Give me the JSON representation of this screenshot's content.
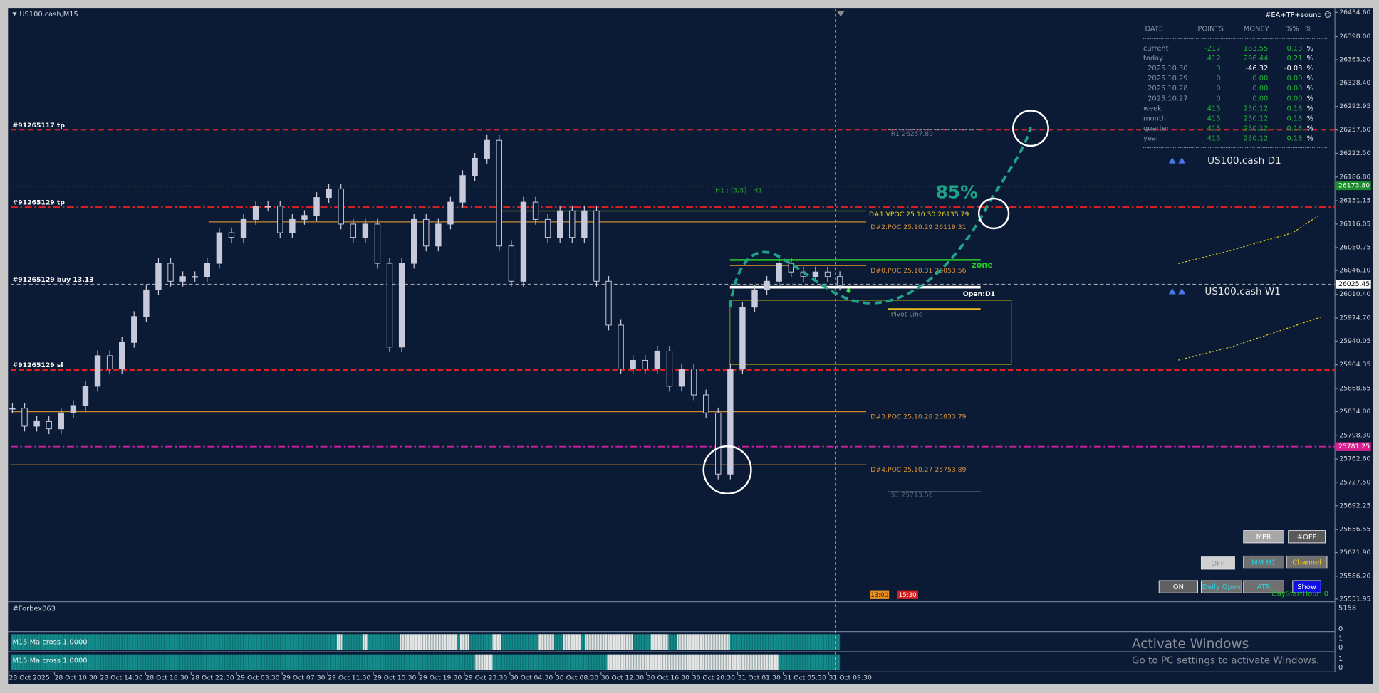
{
  "header": {
    "symbol": "US100.cash,M15",
    "ea": "#EA+TP+sound ☺"
  },
  "stats": {
    "columns": [
      "DATE",
      "POINTS",
      "MONEY",
      "%%",
      "%"
    ],
    "rows": [
      [
        "current",
        "-217",
        "183.55",
        "0.13",
        "%"
      ],
      [
        "today",
        "412",
        "296.44",
        "0.21",
        "%"
      ],
      [
        "2025.10.30",
        "3",
        "-46.32",
        "-0.03",
        "%"
      ],
      [
        "2025.10.29",
        "0",
        "0.00",
        "0.00",
        "%"
      ],
      [
        "2025.10.28",
        "0",
        "0.00",
        "0.00",
        "%"
      ],
      [
        "2025.10.27",
        "0",
        "0.00",
        "0.00",
        "%"
      ],
      [
        "week",
        "415",
        "250.12",
        "0.18",
        "%"
      ],
      [
        "month",
        "415",
        "250.12",
        "0.18",
        "%"
      ],
      [
        "quarter",
        "415",
        "250.12",
        "0.18",
        "%"
      ],
      [
        "year",
        "415",
        "250.12",
        "0.18",
        "%"
      ]
    ]
  },
  "price_axis": {
    "ylim": [
      25551.95,
      26434.6
    ],
    "ticks": [
      {
        "value": 26434.6,
        "label": "26434.60"
      },
      {
        "value": 26398,
        "label": "26398.00"
      },
      {
        "value": 26363.2,
        "label": "26363.20"
      },
      {
        "value": 26328.4,
        "label": "26328.40"
      },
      {
        "value": 26292.95,
        "label": "26292.95"
      },
      {
        "value": 26257.6,
        "label": "26257.60"
      },
      {
        "value": 26222.5,
        "label": "26222.50"
      },
      {
        "value": 26186.8,
        "label": "26186.80"
      },
      {
        "value": 26151.15,
        "label": "26151.15"
      },
      {
        "value": 26116.05,
        "label": "26116.05"
      },
      {
        "value": 26080.75,
        "label": "26080.75"
      },
      {
        "value": 26046.1,
        "label": "26046.10"
      },
      {
        "value": 26010.4,
        "label": "26010.40"
      },
      {
        "value": 25974.7,
        "label": "25974.70"
      },
      {
        "value": 25940.05,
        "label": "25940.05"
      },
      {
        "value": 25904.35,
        "label": "25904.35"
      },
      {
        "value": 25868.65,
        "label": "25868.65"
      },
      {
        "value": 25834,
        "label": "25834.00"
      },
      {
        "value": 25798.3,
        "label": "25798.30"
      },
      {
        "value": 25762.6,
        "label": "25762.60"
      },
      {
        "value": 25727.5,
        "label": "25727.50"
      },
      {
        "value": 25692.25,
        "label": "25692.25"
      },
      {
        "value": 25656.55,
        "label": "25656.55"
      },
      {
        "value": 25621.9,
        "label": "25621.90"
      },
      {
        "value": 25586.2,
        "label": "25586.20"
      },
      {
        "value": 25551.95,
        "label": "25551.95"
      }
    ],
    "markers": [
      {
        "value": 26173.8,
        "label": "26173.80",
        "color": "#1a8a2a"
      },
      {
        "value": 26025.45,
        "label": "26025.45",
        "color": "#ffffff"
      },
      {
        "value": 25781.25,
        "label": "25781.25",
        "color": "#d8208e"
      }
    ]
  },
  "time_axis": [
    "28 Oct 2025",
    "28 Oct 10:30",
    "28 Oct 14:30",
    "28 Oct 18:30",
    "28 Oct 22:30",
    "29 Oct 03:30",
    "29 Oct 07:30",
    "29 Oct 11:30",
    "29 Oct 15:30",
    "29 Oct 19:30",
    "29 Oct 23:30",
    "30 Oct 04:30",
    "30 Oct 08:30",
    "30 Oct 12:30",
    "30 Oct 16:30",
    "30 Oct 20:30",
    "31 Oct 01:30",
    "31 Oct 05:30",
    "31 Oct 09:30"
  ],
  "price_candles": {
    "color": "#c8cadc",
    "closes": [
      25839,
      25812,
      25819,
      25808,
      25832,
      25843,
      25872,
      25918,
      25898,
      25938,
      25977,
      26017,
      26057,
      26030,
      26037,
      26037,
      26057,
      26103,
      26096,
      26123,
      26143,
      26143,
      26103,
      26123,
      26129,
      26156,
      26169,
      26116,
      26096,
      26116,
      26057,
      25931,
      26057,
      26123,
      26083,
      26116,
      26149,
      26189,
      26215,
      26242,
      26083,
      26030,
      26149,
      26123,
      26096,
      26136,
      26096,
      26136,
      26030,
      25964,
      25898,
      25911,
      25898,
      25925,
      25872,
      25898,
      25859,
      25832,
      25740,
      25898,
      25991,
      26017,
      26030,
      26057,
      26044,
      26037,
      26044,
      26037,
      26024
    ]
  },
  "levels": [
    {
      "label": "#91265117 tp",
      "price": 26257.5,
      "color": "#d42a2a"
    },
    {
      "label": "R1 26257.89",
      "price": 26257.89,
      "color": "#5fa8c8"
    },
    {
      "label": "H1 : [3/8] - H1",
      "price": 26173.0,
      "color": "#1d6b1d"
    },
    {
      "label": "#91265129 tp",
      "price": 26141.3,
      "color": "#e02020"
    },
    {
      "label": "D#1.VPOC 25.10.30 26135.79",
      "price": 26135.79,
      "color": "#d8c020"
    },
    {
      "label": "D#2.POC 25.10.29 26119.31",
      "price": 26119.31,
      "color": "#c8872e"
    },
    {
      "label": "D#0.POC 25.10.31 26053.56",
      "price": 26053.56,
      "color": "#c8872e"
    },
    {
      "label": "#91265129 buy 13.13",
      "price": 26025.45,
      "color": "#9aa0aa"
    },
    {
      "label": "Open:D1",
      "price": 26021.0,
      "color": "#ffffff"
    },
    {
      "label": "Pivot Line",
      "price": 25988.0,
      "color": "#e8c020"
    },
    {
      "label": "#91265129 sl",
      "price": 25896.8,
      "color": "#e02020"
    },
    {
      "label": "D#3.POC 25.10.28 25833.79",
      "price": 25833.79,
      "color": "#c8872e"
    },
    {
      "price": 25781.25,
      "color": "#d020a0"
    },
    {
      "label": "D#4.POC 25.10.27 25753.89",
      "price": 25753.89,
      "color": "#c8872e"
    },
    {
      "label": "S1 25713.50",
      "price": 25713.5,
      "color": "#5a6a7a"
    }
  ],
  "annotations": {
    "probability": "85%",
    "zone": "zone",
    "mini_d1": "US100.cash D1",
    "mini_w1": "US100.cash W1",
    "time_marker_1": "13:00",
    "time_marker_2": "15:30"
  },
  "buttons": [
    "MPR",
    "#OFF",
    "OFF",
    "MM H1",
    "Channel",
    "ON",
    "Daily Open",
    "ATR",
    "Show"
  ],
  "day_start": "DayStartHour: 0",
  "indicators": {
    "volume_title": "#Forbex063",
    "volume_max": "5158",
    "volume_min": "0",
    "ma_rows": [
      {
        "title": "M15 Ma cross 1.0000",
        "top": "1",
        "bottom": "0"
      },
      {
        "title": "M15 Ma cross 1.0000",
        "top": "1",
        "bottom": "0"
      }
    ]
  },
  "watermark": {
    "title": "Activate Windows",
    "subtitle": "Go to PC settings to activate Windows."
  }
}
